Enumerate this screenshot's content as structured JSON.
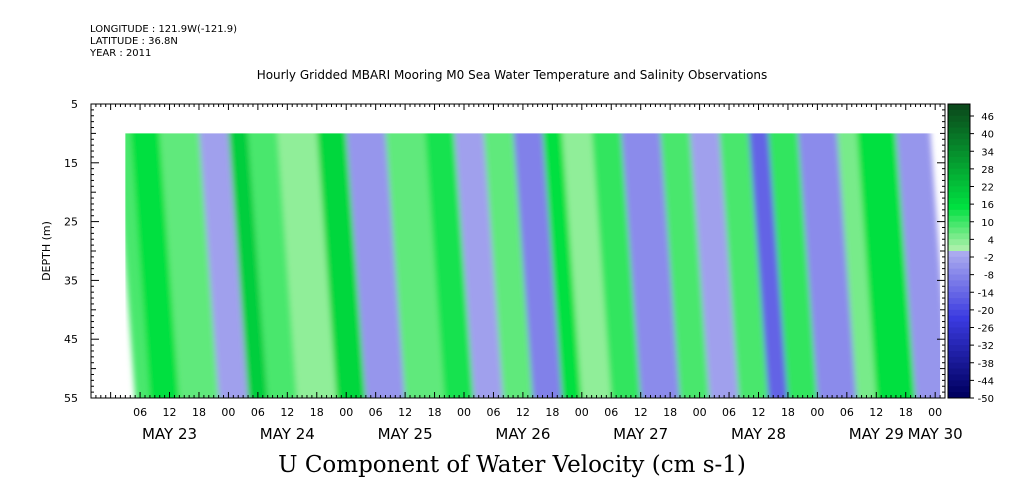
{
  "header": {
    "longitude": "LONGITUDE : 121.9W(-121.9)",
    "latitude": "LATITUDE : 36.8N",
    "year": "YEAR : 2011"
  },
  "chart_data": {
    "type": "heatmap",
    "title": "Hourly Gridded MBARI Mooring M0 Sea Water Temperature and Salinity Observations",
    "variable_label": "U Component of Water Velocity (cm s-1)",
    "ylabel": "DEPTH (m)",
    "ylim": [
      55,
      5
    ],
    "y_inverted": true,
    "y_ticks": [
      5,
      15,
      25,
      35,
      45,
      55
    ],
    "depth_data_range": [
      10,
      55
    ],
    "x_start": "2011-05-22 20:00",
    "x_end": "2011-05-30 02:00",
    "data_start": "2011-05-23 03:00",
    "data_end": "2011-05-30 01:00",
    "hour_tick_labels": [
      "06",
      "12",
      "18",
      "00",
      "06",
      "12",
      "18",
      "00",
      "06",
      "12",
      "18",
      "00",
      "06",
      "12",
      "18",
      "00",
      "06",
      "12",
      "18",
      "00",
      "06",
      "12",
      "18",
      "00",
      "06",
      "12",
      "18",
      "00"
    ],
    "day_labels": [
      "MAY 23",
      "MAY 24",
      "MAY 25",
      "MAY 26",
      "MAY 27",
      "MAY 28",
      "MAY 29",
      "MAY 30"
    ],
    "colorbar": {
      "levels": [
        48,
        46,
        44,
        42,
        40,
        38,
        36,
        34,
        32,
        30,
        28,
        26,
        24,
        22,
        20,
        18,
        16,
        14,
        12,
        10,
        8,
        6,
        4,
        2,
        0,
        -2,
        -4,
        -6,
        -8,
        -10,
        -12,
        -14,
        -16,
        -18,
        -20,
        -22,
        -24,
        -26,
        -28,
        -30,
        -32,
        -34,
        -36,
        -38,
        -40,
        -42,
        -44,
        -46,
        -48,
        -50
      ],
      "tick_labels": [
        "46",
        "40",
        "34",
        "28",
        "22",
        "16",
        "10",
        "4",
        "-2",
        "-8",
        "-14",
        "-20",
        "-26",
        "-32",
        "-38",
        "-44",
        "-50"
      ],
      "positive_color_max": "#0b4a1c",
      "positive_color_mid": "#00e040",
      "positive_color_min": "#a8f0a8",
      "negative_color_min": "#b4b4f0",
      "negative_color_mid": "#3a3ae0",
      "negative_color_max": "#000060"
    },
    "bands": [
      {
        "from": "2011-05-23 03:00",
        "to": "2011-05-23 06:00",
        "u": 8
      },
      {
        "from": "2011-05-23 06:00",
        "to": "2011-05-23 12:00",
        "u": 14
      },
      {
        "from": "2011-05-23 12:00",
        "to": "2011-05-23 20:00",
        "u": 6
      },
      {
        "from": "2011-05-23 20:00",
        "to": "2011-05-24 02:00",
        "u": -4
      },
      {
        "from": "2011-05-24 02:00",
        "to": "2011-05-24 06:00",
        "u": 18
      },
      {
        "from": "2011-05-24 06:00",
        "to": "2011-05-24 12:00",
        "u": 8
      },
      {
        "from": "2011-05-24 12:00",
        "to": "2011-05-24 20:00",
        "u": 2
      },
      {
        "from": "2011-05-24 20:00",
        "to": "2011-05-25 02:00",
        "u": 16
      },
      {
        "from": "2011-05-25 02:00",
        "to": "2011-05-25 10:00",
        "u": -6
      },
      {
        "from": "2011-05-25 10:00",
        "to": "2011-05-25 18:00",
        "u": 6
      },
      {
        "from": "2011-05-25 18:00",
        "to": "2011-05-26 00:00",
        "u": 12
      },
      {
        "from": "2011-05-26 00:00",
        "to": "2011-05-26 06:00",
        "u": -4
      },
      {
        "from": "2011-05-26 06:00",
        "to": "2011-05-26 12:00",
        "u": 6
      },
      {
        "from": "2011-05-26 12:00",
        "to": "2011-05-26 18:00",
        "u": -10
      },
      {
        "from": "2011-05-26 18:00",
        "to": "2011-05-26 22:00",
        "u": 14
      },
      {
        "from": "2011-05-26 22:00",
        "to": "2011-05-27 04:00",
        "u": 2
      },
      {
        "from": "2011-05-27 04:00",
        "to": "2011-05-27 10:00",
        "u": 10
      },
      {
        "from": "2011-05-27 10:00",
        "to": "2011-05-27 18:00",
        "u": -8
      },
      {
        "from": "2011-05-27 18:00",
        "to": "2011-05-28 00:00",
        "u": 8
      },
      {
        "from": "2011-05-28 00:00",
        "to": "2011-05-28 06:00",
        "u": -4
      },
      {
        "from": "2011-05-28 06:00",
        "to": "2011-05-28 12:00",
        "u": 8
      },
      {
        "from": "2011-05-28 12:00",
        "to": "2011-05-28 16:00",
        "u": -16
      },
      {
        "from": "2011-05-28 16:00",
        "to": "2011-05-28 22:00",
        "u": 10
      },
      {
        "from": "2011-05-28 22:00",
        "to": "2011-05-29 06:00",
        "u": -8
      },
      {
        "from": "2011-05-29 06:00",
        "to": "2011-05-29 10:00",
        "u": 4
      },
      {
        "from": "2011-05-29 10:00",
        "to": "2011-05-29 18:00",
        "u": 14
      },
      {
        "from": "2011-05-29 18:00",
        "to": "2011-05-30 01:00",
        "u": -6
      }
    ]
  }
}
